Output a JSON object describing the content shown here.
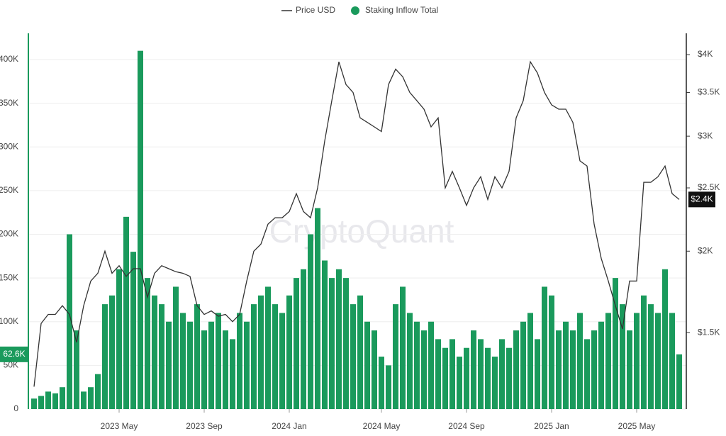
{
  "chart_data": {
    "type": "combo",
    "watermark": "CryptoQuant",
    "categories": [
      null,
      null,
      null,
      null,
      null,
      null,
      null,
      null,
      null,
      null,
      null,
      null,
      "2023 May",
      null,
      null,
      null,
      null,
      null,
      null,
      null,
      null,
      null,
      null,
      null,
      "2023 Sep",
      null,
      null,
      null,
      null,
      null,
      null,
      null,
      null,
      null,
      null,
      null,
      "2024 Jan",
      null,
      null,
      null,
      null,
      null,
      null,
      null,
      null,
      null,
      null,
      null,
      null,
      "2024 May",
      null,
      null,
      null,
      null,
      null,
      null,
      null,
      null,
      null,
      null,
      null,
      "2024 Sep",
      null,
      null,
      null,
      null,
      null,
      null,
      null,
      null,
      null,
      null,
      null,
      "2025 Jan",
      null,
      null,
      null,
      null,
      null,
      null,
      null,
      null,
      null,
      null,
      null,
      "2025 May",
      null,
      null,
      null,
      null,
      null,
      null
    ],
    "series": [
      {
        "name": "Price USD",
        "type": "line",
        "axis": "y2",
        "color": "#333333",
        "values": [
          1240,
          1550,
          1600,
          1600,
          1650,
          1600,
          1450,
          1650,
          1800,
          1850,
          2000,
          1850,
          1900,
          1830,
          1880,
          1880,
          1700,
          1850,
          1900,
          1880,
          1860,
          1850,
          1830,
          1650,
          1600,
          1620,
          1590,
          1600,
          1560,
          1600,
          1800,
          2000,
          2050,
          2200,
          2250,
          2250,
          2300,
          2450,
          2300,
          2250,
          2500,
          2950,
          3400,
          3900,
          3600,
          3500,
          3200,
          3150,
          3100,
          3050,
          3600,
          3800,
          3700,
          3500,
          3400,
          3300,
          3100,
          3200,
          2500,
          2650,
          2500,
          2350,
          2500,
          2600,
          2400,
          2600,
          2500,
          2650,
          3200,
          3400,
          3900,
          3750,
          3500,
          3350,
          3300,
          3300,
          3150,
          2750,
          2700,
          2200,
          1950,
          1800,
          1650,
          1520,
          1800,
          1800,
          2550,
          2550,
          2600,
          2700,
          2450,
          2400
        ],
        "value_labels": [
          null,
          null,
          null,
          null,
          null,
          null,
          null,
          null,
          null,
          null,
          null,
          null,
          null,
          null,
          null,
          null,
          null,
          null,
          null,
          null,
          null,
          null,
          null,
          null,
          null,
          null,
          null,
          null,
          null,
          null,
          null,
          null,
          null,
          null,
          null,
          null,
          null,
          null,
          null,
          null,
          null,
          null,
          null,
          null,
          null,
          null,
          null,
          null,
          null,
          null,
          null,
          null,
          null,
          null,
          null,
          null,
          null,
          null,
          null,
          null,
          null,
          null,
          null,
          null,
          null,
          null,
          null,
          null,
          null,
          null,
          null,
          null,
          null,
          null,
          null,
          null,
          null,
          null,
          null,
          null,
          null,
          null,
          null,
          null,
          null,
          null,
          null,
          null,
          null,
          null,
          null,
          "$2.4K"
        ]
      },
      {
        "name": "Staking Inflow Total",
        "type": "bar",
        "axis": "y",
        "color": "#1a9a5c",
        "values": [
          12000,
          15000,
          20000,
          18000,
          25000,
          200000,
          90000,
          20000,
          25000,
          40000,
          120000,
          130000,
          160000,
          220000,
          180000,
          410000,
          150000,
          130000,
          120000,
          100000,
          140000,
          110000,
          100000,
          120000,
          90000,
          100000,
          110000,
          90000,
          80000,
          110000,
          100000,
          120000,
          130000,
          140000,
          120000,
          110000,
          130000,
          150000,
          160000,
          200000,
          230000,
          170000,
          150000,
          160000,
          150000,
          120000,
          130000,
          100000,
          90000,
          60000,
          50000,
          120000,
          140000,
          110000,
          100000,
          90000,
          100000,
          80000,
          70000,
          80000,
          60000,
          70000,
          90000,
          80000,
          70000,
          60000,
          80000,
          70000,
          90000,
          100000,
          110000,
          80000,
          140000,
          130000,
          90000,
          100000,
          90000,
          110000,
          80000,
          90000,
          100000,
          110000,
          150000,
          120000,
          90000,
          110000,
          130000,
          120000,
          110000,
          160000,
          110000,
          62600
        ],
        "value_labels": [
          null,
          null,
          null,
          null,
          null,
          null,
          null,
          null,
          null,
          null,
          null,
          null,
          null,
          null,
          null,
          null,
          null,
          null,
          null,
          null,
          null,
          null,
          null,
          null,
          null,
          null,
          null,
          null,
          null,
          null,
          null,
          null,
          null,
          null,
          null,
          null,
          null,
          null,
          null,
          null,
          null,
          null,
          null,
          null,
          null,
          null,
          null,
          null,
          null,
          null,
          null,
          null,
          null,
          null,
          null,
          null,
          null,
          null,
          null,
          null,
          null,
          null,
          null,
          null,
          null,
          null,
          null,
          null,
          null,
          null,
          null,
          null,
          null,
          null,
          null,
          null,
          null,
          null,
          null,
          null,
          null,
          null,
          null,
          null,
          null,
          null,
          null,
          null,
          null,
          null,
          null,
          "62.6K"
        ]
      }
    ],
    "ylim": [
      0,
      430000
    ],
    "yticks": [
      0,
      {
        "value": 50000,
        "label": "50K"
      },
      {
        "value": 100000,
        "label": "100K"
      },
      {
        "value": 150000,
        "label": "150K"
      },
      {
        "value": 200000,
        "label": "200K"
      },
      {
        "value": 250000,
        "label": "250K"
      },
      {
        "value": 300000,
        "label": "300K"
      },
      {
        "value": 350000,
        "label": "350K"
      },
      {
        "value": 400000,
        "label": "400K"
      }
    ],
    "y2lim": [
      1146,
      4312
    ],
    "y2_log": true,
    "y2ticks": [
      {
        "value": 1500,
        "label": "$1.5K"
      },
      {
        "value": 2000,
        "label": "$2K"
      },
      {
        "value": 2500,
        "label": "$2.5K"
      },
      {
        "value": 3000,
        "label": "$3K"
      },
      {
        "value": 3500,
        "label": "$3.5K"
      },
      {
        "value": 4000,
        "label": "$4K"
      }
    ],
    "grid": true,
    "legend": "top"
  }
}
